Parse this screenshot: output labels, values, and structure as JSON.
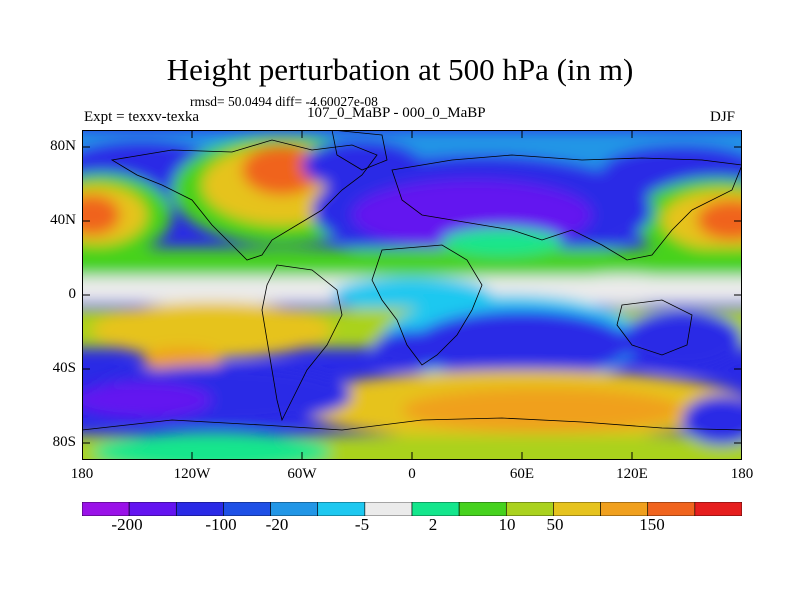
{
  "title": "Height perturbation at 500 hPa (in m)",
  "stats": "rmsd= 50.0494 diff= -4.60027e-08",
  "experiment": "Expt = texxv-texka",
  "comparison": "107_0_MaBP - 000_0_MaBP",
  "season": "DJF",
  "lat_labels": [
    "80N",
    "40N",
    "0",
    "40S",
    "80S"
  ],
  "lon_labels": [
    "180",
    "120W",
    "60W",
    "0",
    "60E",
    "120E",
    "180"
  ],
  "colorbar_labels": [
    "-200",
    "-100",
    "-20",
    "-5",
    "2",
    "10",
    "50",
    "150"
  ],
  "colorbar_colors": [
    "#9a12e8",
    "#6414f0",
    "#2a2ae6",
    "#1e50e6",
    "#2296e6",
    "#1ec8f0",
    "#ebebeb",
    "#14e68c",
    "#46d21e",
    "#aad21e",
    "#e6c31e",
    "#f0a01e",
    "#f0641e",
    "#e61e1e"
  ]
}
